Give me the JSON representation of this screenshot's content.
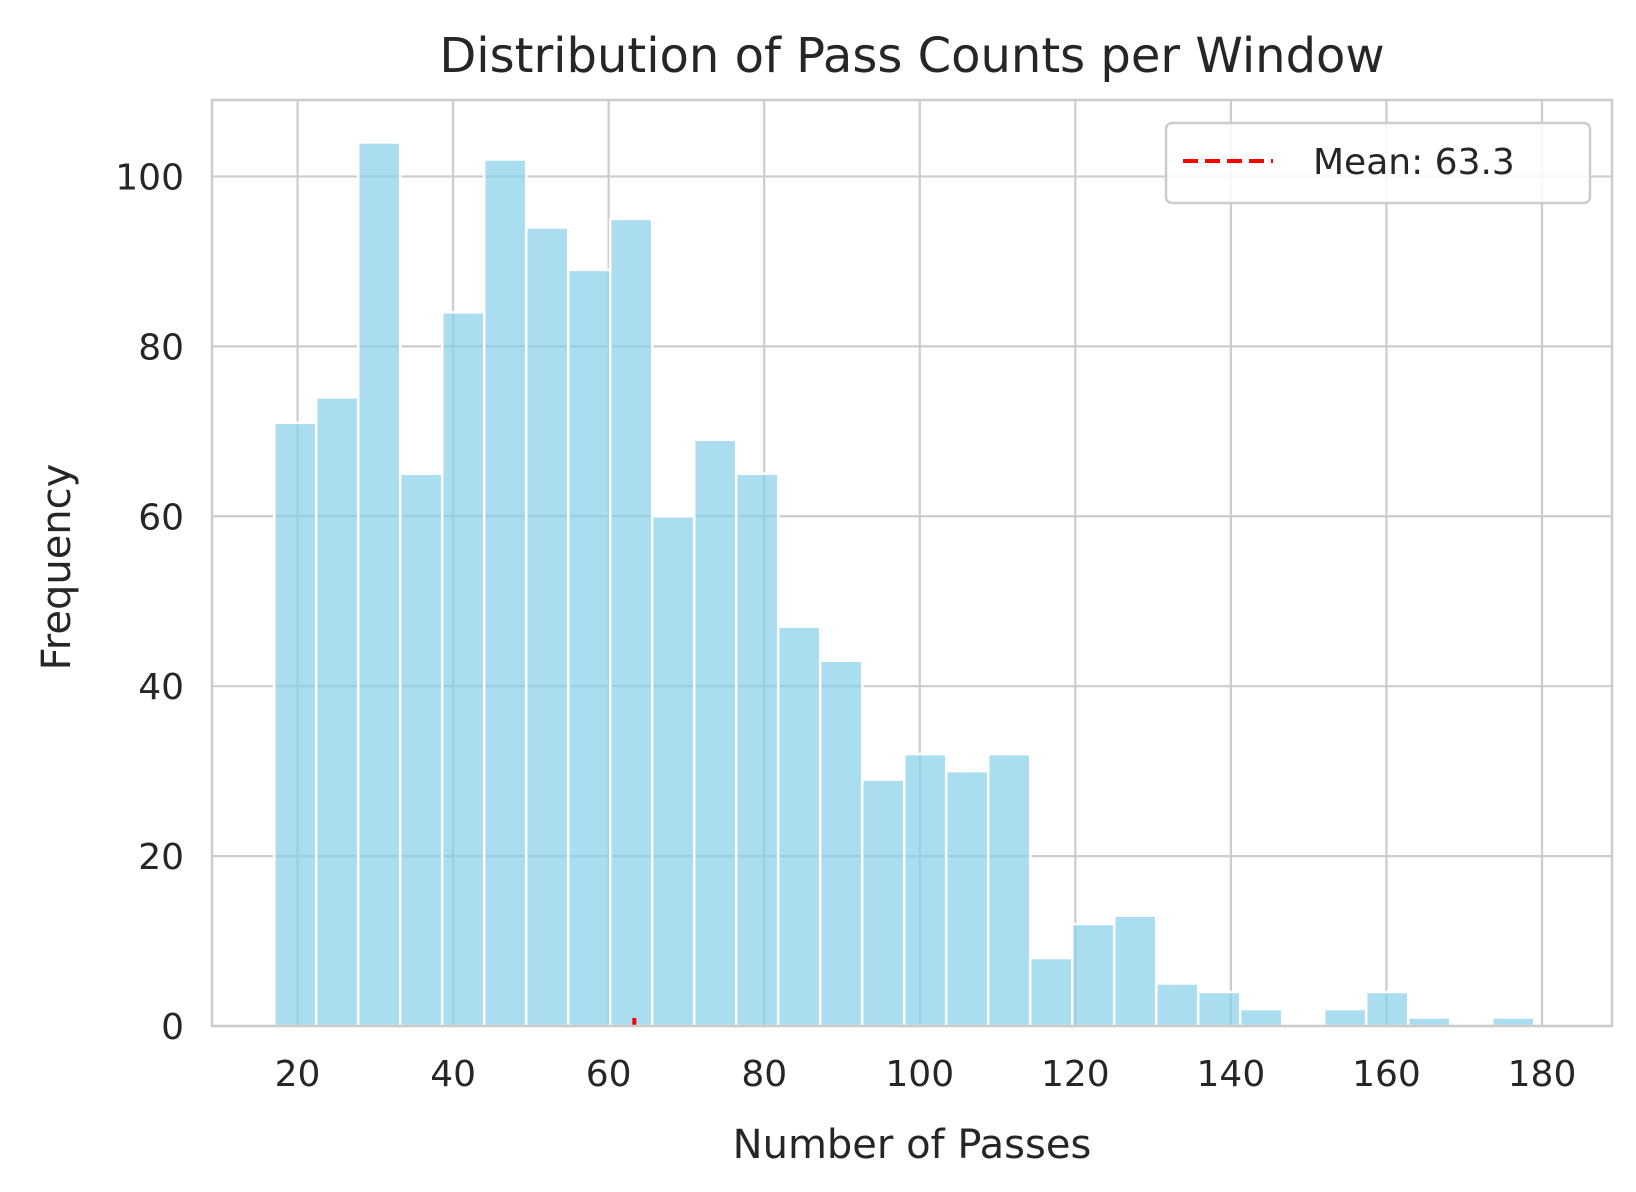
{
  "chart_data": {
    "type": "bar",
    "title": "Distribution of Pass Counts per Window",
    "xlabel": "Number of Passes",
    "ylabel": "Frequency",
    "xlim": [
      9,
      189
    ],
    "ylim": [
      0,
      109
    ],
    "xticks": [
      20,
      40,
      60,
      80,
      100,
      120,
      140,
      160,
      180
    ],
    "yticks": [
      0,
      20,
      40,
      60,
      80,
      100
    ],
    "grid": true,
    "bin_start": 17,
    "bin_width": 5.4,
    "bins": [
      {
        "x0": 17.0,
        "x1": 22.4,
        "count": 71
      },
      {
        "x0": 22.4,
        "x1": 27.8,
        "count": 74
      },
      {
        "x0": 27.8,
        "x1": 33.2,
        "count": 104
      },
      {
        "x0": 33.2,
        "x1": 38.6,
        "count": 65
      },
      {
        "x0": 38.6,
        "x1": 44.0,
        "count": 84
      },
      {
        "x0": 44.0,
        "x1": 49.4,
        "count": 102
      },
      {
        "x0": 49.4,
        "x1": 54.8,
        "count": 94
      },
      {
        "x0": 54.8,
        "x1": 60.2,
        "count": 89
      },
      {
        "x0": 60.2,
        "x1": 65.6,
        "count": 95
      },
      {
        "x0": 65.6,
        "x1": 71.0,
        "count": 60
      },
      {
        "x0": 71.0,
        "x1": 76.4,
        "count": 69
      },
      {
        "x0": 76.4,
        "x1": 81.8,
        "count": 65
      },
      {
        "x0": 81.8,
        "x1": 87.2,
        "count": 47
      },
      {
        "x0": 87.2,
        "x1": 92.6,
        "count": 43
      },
      {
        "x0": 92.6,
        "x1": 98.0,
        "count": 29
      },
      {
        "x0": 98.0,
        "x1": 103.4,
        "count": 32
      },
      {
        "x0": 103.4,
        "x1": 108.8,
        "count": 30
      },
      {
        "x0": 108.8,
        "x1": 114.2,
        "count": 32
      },
      {
        "x0": 114.2,
        "x1": 119.6,
        "count": 8
      },
      {
        "x0": 119.6,
        "x1": 125.0,
        "count": 12
      },
      {
        "x0": 125.0,
        "x1": 130.4,
        "count": 13
      },
      {
        "x0": 130.4,
        "x1": 135.8,
        "count": 5
      },
      {
        "x0": 135.8,
        "x1": 141.2,
        "count": 4
      },
      {
        "x0": 141.2,
        "x1": 146.6,
        "count": 2
      },
      {
        "x0": 146.6,
        "x1": 152.0,
        "count": 0
      },
      {
        "x0": 152.0,
        "x1": 157.4,
        "count": 2
      },
      {
        "x0": 157.4,
        "x1": 162.8,
        "count": 4
      },
      {
        "x0": 162.8,
        "x1": 168.2,
        "count": 1
      },
      {
        "x0": 168.2,
        "x1": 173.6,
        "count": 0
      },
      {
        "x0": 173.6,
        "x1": 179.0,
        "count": 1
      }
    ],
    "mean_line": {
      "x": 63.3,
      "label": "Mean: 63.3",
      "color": "#ff0000",
      "style": "dashed"
    },
    "bar_color": "#87ceeb",
    "legend_position": "top-right"
  }
}
